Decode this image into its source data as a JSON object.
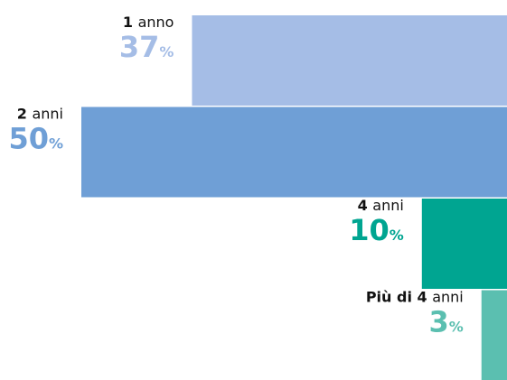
{
  "chart_data": {
    "type": "bar",
    "categories": [
      "1 anno",
      "2 anni",
      "4 anni",
      "Più di 4 anni"
    ],
    "values": [
      37,
      50,
      10,
      3
    ],
    "value_labels": [
      "37%",
      "50%",
      "10%",
      "3%"
    ],
    "colors": [
      "#a5bde6",
      "#6f9fd6",
      "#00a591",
      "#5bbfb0"
    ]
  }
}
